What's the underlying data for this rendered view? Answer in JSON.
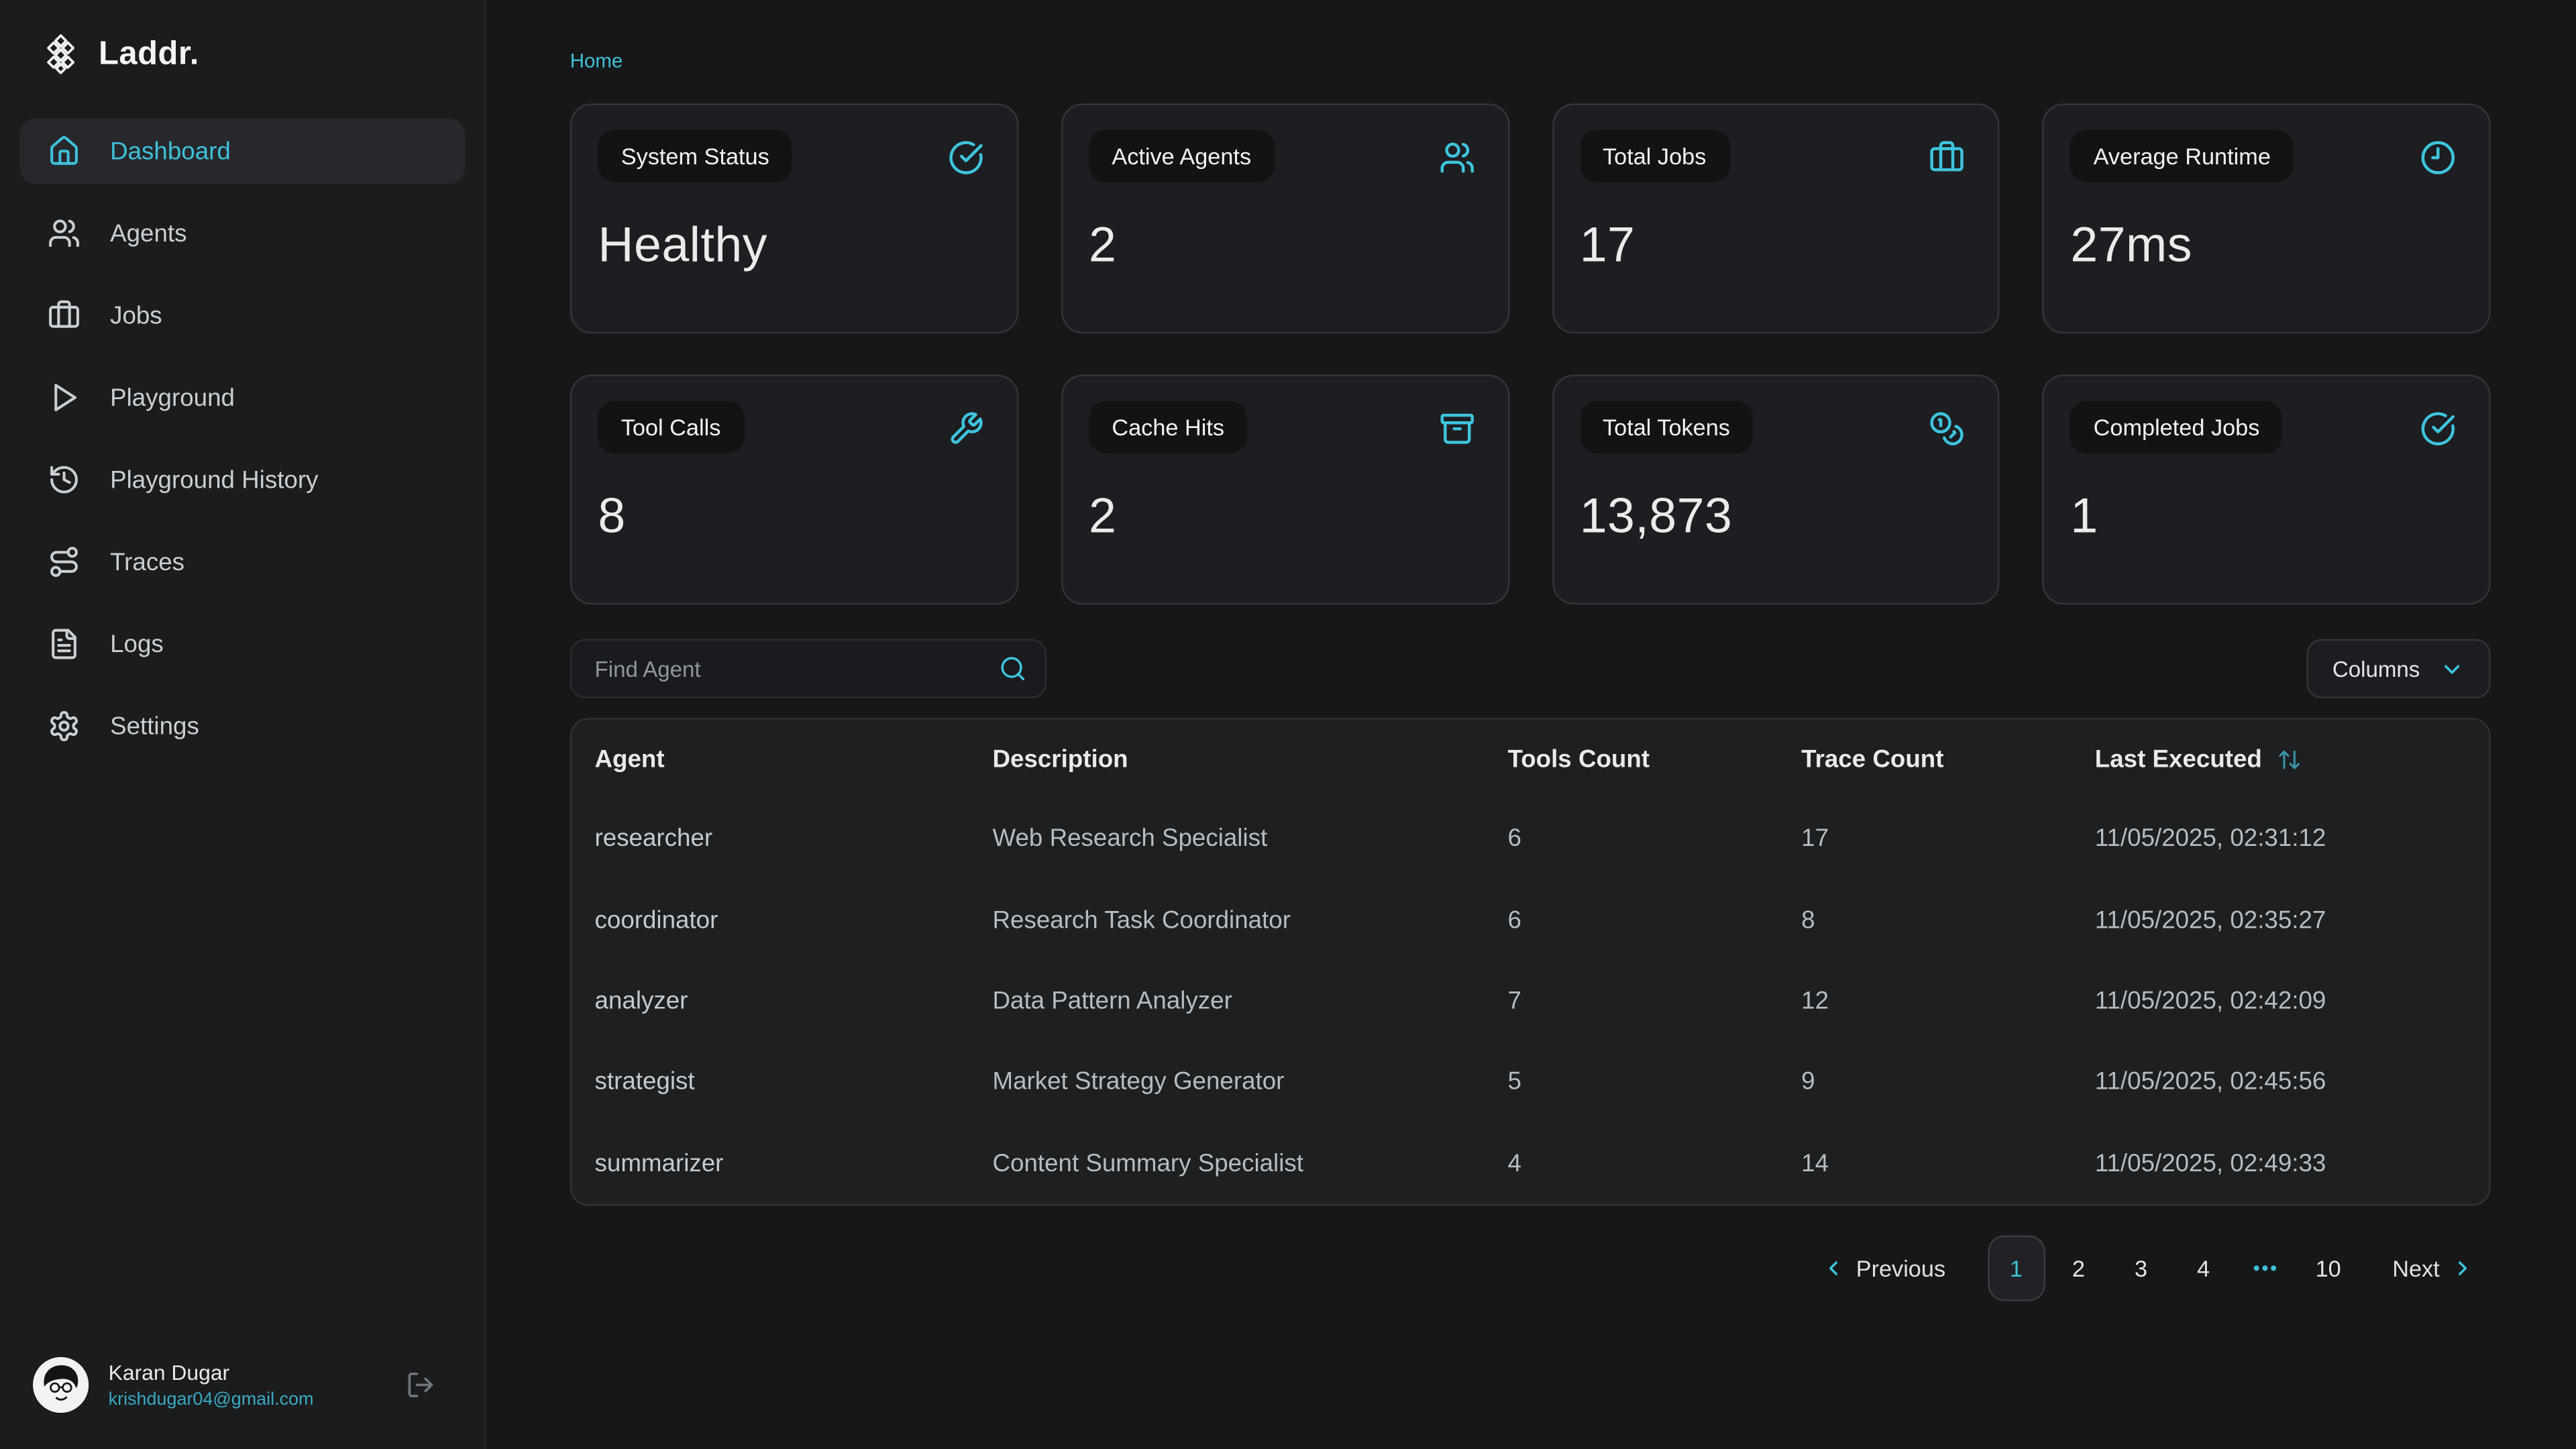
{
  "brand": {
    "name": "Laddr."
  },
  "breadcrumb": {
    "home": "Home"
  },
  "sidebar": {
    "items": [
      {
        "id": "dashboard",
        "label": "Dashboard",
        "icon": "house-icon",
        "active": true
      },
      {
        "id": "agents",
        "label": "Agents",
        "icon": "users-icon"
      },
      {
        "id": "jobs",
        "label": "Jobs",
        "icon": "briefcase-icon"
      },
      {
        "id": "playground",
        "label": "Playground",
        "icon": "play-icon"
      },
      {
        "id": "playground-history",
        "label": "Playground History",
        "icon": "history-icon"
      },
      {
        "id": "traces",
        "label": "Traces",
        "icon": "route-icon"
      },
      {
        "id": "logs",
        "label": "Logs",
        "icon": "file-text-icon"
      },
      {
        "id": "settings",
        "label": "Settings",
        "icon": "gear-icon"
      }
    ],
    "user": {
      "name": "Karan Dugar",
      "email": "krishdugar04@gmail.com"
    }
  },
  "stats": [
    {
      "id": "system-status",
      "label": "System Status",
      "value": "Healthy",
      "icon": "circle-check-icon"
    },
    {
      "id": "active-agents",
      "label": "Active Agents",
      "value": "2",
      "icon": "users-icon"
    },
    {
      "id": "total-jobs",
      "label": "Total Jobs",
      "value": "17",
      "icon": "briefcase-icon"
    },
    {
      "id": "average-runtime",
      "label": "Average Runtime",
      "value": "27ms",
      "icon": "clock-icon"
    },
    {
      "id": "tool-calls",
      "label": "Tool Calls",
      "value": "8",
      "icon": "wrench-icon"
    },
    {
      "id": "cache-hits",
      "label": "Cache Hits",
      "value": "2",
      "icon": "archive-icon"
    },
    {
      "id": "total-tokens",
      "label": "Total Tokens",
      "value": "13,873",
      "icon": "coins-icon"
    },
    {
      "id": "completed-jobs",
      "label": "Completed Jobs",
      "value": "1",
      "icon": "circle-check-icon"
    }
  ],
  "toolbar": {
    "search_placeholder": "Find Agent",
    "search_value": "",
    "columns_label": "Columns"
  },
  "table": {
    "columns": [
      "Agent",
      "Description",
      "Tools Count",
      "Trace Count",
      "Last Executed"
    ],
    "rows": [
      {
        "id": "researcher",
        "agent": "researcher",
        "description": "Web Research Specialist",
        "tools_count": "6",
        "trace_count": "17",
        "last_executed": "11/05/2025, 02:31:12"
      },
      {
        "id": "coordinator",
        "agent": "coordinator",
        "description": "Research Task Coordinator",
        "tools_count": "6",
        "trace_count": "8",
        "last_executed": "11/05/2025, 02:35:27"
      },
      {
        "id": "analyzer",
        "agent": "analyzer",
        "description": "Data Pattern Analyzer",
        "tools_count": "7",
        "trace_count": "12",
        "last_executed": "11/05/2025, 02:42:09"
      },
      {
        "id": "strategist",
        "agent": "strategist",
        "description": "Market Strategy Generator",
        "tools_count": "5",
        "trace_count": "9",
        "last_executed": "11/05/2025, 02:45:56"
      },
      {
        "id": "summarizer",
        "agent": "summarizer",
        "description": "Content Summary Specialist",
        "tools_count": "4",
        "trace_count": "14",
        "last_executed": "11/05/2025, 02:49:33"
      }
    ]
  },
  "pagination": {
    "previous_label": "Previous",
    "next_label": "Next",
    "pages": [
      {
        "id": "1",
        "label": "1",
        "active": true
      },
      {
        "id": "2",
        "label": "2"
      },
      {
        "id": "3",
        "label": "3"
      },
      {
        "id": "4",
        "label": "4"
      },
      {
        "id": "ellipsis",
        "label": "•••",
        "ellipsis": true
      },
      {
        "id": "10",
        "label": "10"
      }
    ]
  },
  "colors": {
    "accent": "#3ec5de",
    "accent_text": "#3fc1d9",
    "page_bg": "#161718",
    "card_bg": "#1d1e21"
  }
}
